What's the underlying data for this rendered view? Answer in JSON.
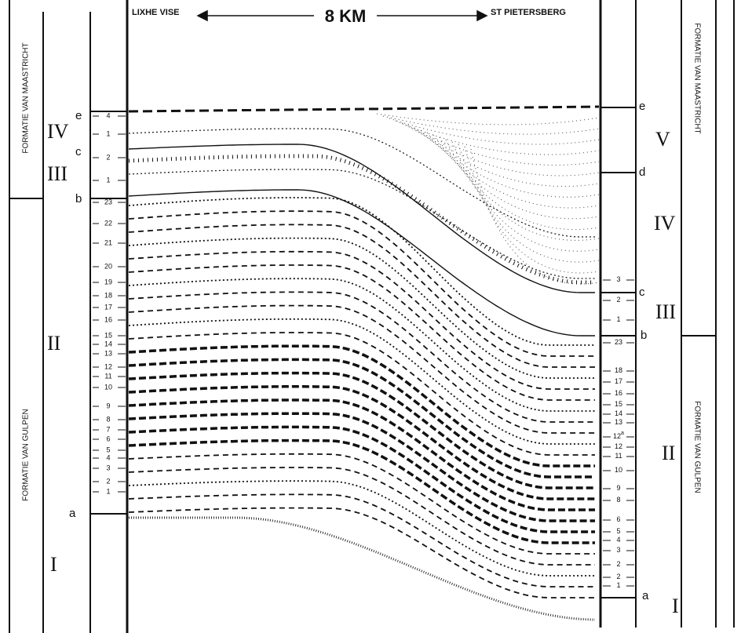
{
  "header": {
    "left_locality": "LIXHE VISE",
    "distance": "8 KM",
    "right_locality": "ST PIETERSBERG"
  },
  "left_column": {
    "formations": [
      "FORMATIE VAN MAASTRICHT",
      "FORMATIE VAN GULPEN"
    ],
    "units": [
      "IV",
      "III",
      "II",
      "I"
    ],
    "boundaries": [
      "e",
      "c",
      "b",
      "a"
    ],
    "beds": [
      "4",
      "1",
      "2",
      "1",
      "23",
      "22",
      "21",
      "20",
      "19",
      "18",
      "17",
      "16",
      "15",
      "14",
      "13",
      "12",
      "11",
      "10",
      "9",
      "8",
      "7",
      "6",
      "5",
      "4",
      "3",
      "2",
      "1"
    ]
  },
  "right_column": {
    "formations": [
      "FORMATIE VAN MAASTRICHT",
      "FORMATIE VAN GULPEN"
    ],
    "units": [
      "V",
      "IV",
      "III",
      "II",
      "I"
    ],
    "boundaries": [
      "e",
      "d",
      "c",
      "b",
      "a"
    ],
    "beds": [
      {
        "number": "3"
      },
      {
        "number": "2"
      },
      {
        "number": "1"
      },
      {
        "number": "23"
      },
      {
        "number": "18"
      },
      {
        "number": "17"
      },
      {
        "number": "16"
      },
      {
        "number": "15"
      },
      {
        "number": "14"
      },
      {
        "number": "13"
      },
      {
        "number": "12",
        "superscript": "a"
      },
      {
        "number": "12"
      },
      {
        "number": "11"
      },
      {
        "number": "10"
      },
      {
        "number": "9"
      },
      {
        "number": "8"
      },
      {
        "number": "6"
      },
      {
        "number": "5"
      },
      {
        "number": "4"
      },
      {
        "number": "3"
      },
      {
        "number": "2"
      },
      {
        "number": "2"
      },
      {
        "number": "1"
      }
    ]
  }
}
